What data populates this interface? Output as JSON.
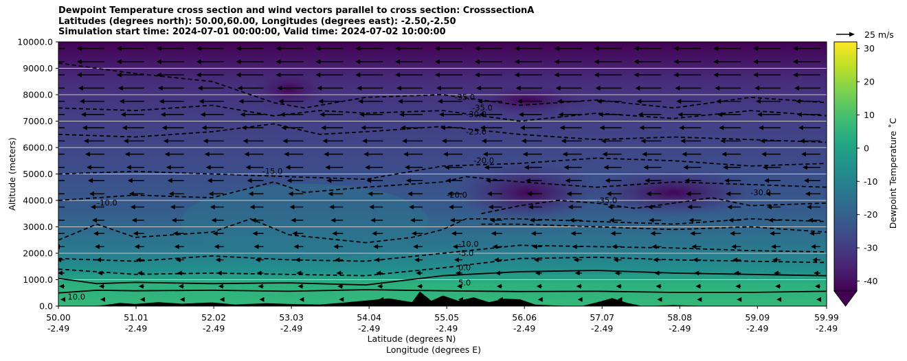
{
  "title": {
    "line1": "Dewpoint Temperature cross section and wind vectors parallel to cross section: CrosssectionA",
    "line2": "Latitudes (degrees north): 50.00,60.00, Longitudes (degrees east): -2.50,-2.50",
    "line3": "Simulation start time: 2024-07-01 00:00:00, Valid time: 2024-07-02 10:00:00"
  },
  "quiver_key_label": "25 m/s",
  "colorbar_label": "Dewpoint Temperature ˚C",
  "colors": {
    "colormap": "viridis",
    "terrain": "#000000",
    "gridlines": "#c8c8c8",
    "arrows": "#000000"
  },
  "chart_data": {
    "type": "heatmap",
    "subtype": "filled contour cross section with wind vectors",
    "xlabel": "Latitude (degrees N)",
    "xlabel2": "Longitude (degrees E)",
    "ylabel": "Altitude (meters)",
    "xlim": [
      50.0,
      59.99
    ],
    "ylim": [
      0,
      10000
    ],
    "grid": "horizontal",
    "x_ticks": [
      {
        "lat": "50.00",
        "lon": "-2.49"
      },
      {
        "lat": "51.01",
        "lon": "-2.49"
      },
      {
        "lat": "52.02",
        "lon": "-2.49"
      },
      {
        "lat": "53.03",
        "lon": "-2.49"
      },
      {
        "lat": "54.04",
        "lon": "-2.49"
      },
      {
        "lat": "55.05",
        "lon": "-2.49"
      },
      {
        "lat": "56.06",
        "lon": "-2.49"
      },
      {
        "lat": "57.07",
        "lon": "-2.49"
      },
      {
        "lat": "58.08",
        "lon": "-2.49"
      },
      {
        "lat": "59.09",
        "lon": "-2.49"
      },
      {
        "lat": "59.99",
        "lon": "-2.49"
      }
    ],
    "y_ticks": [
      "0.0",
      "1000.0",
      "2000.0",
      "3000.0",
      "4000.0",
      "5000.0",
      "6000.0",
      "7000.0",
      "8000.0",
      "9000.0",
      "10000.0"
    ],
    "colorbar_ticks": [
      30,
      20,
      10,
      0,
      -10,
      -20,
      -30,
      -40
    ],
    "colorbar_range": [
      -43,
      32
    ],
    "colorbar_extend": "min",
    "contour_labels": [
      {
        "text": "10.0",
        "lat": 50.12,
        "alt": 250
      },
      {
        "text": "5.0",
        "lat": 55.2,
        "alt": 780
      },
      {
        "text": "0.0",
        "lat": 55.2,
        "alt": 1350
      },
      {
        "text": "-5.0",
        "lat": 55.2,
        "alt": 1900
      },
      {
        "text": "-10.0",
        "lat": 55.2,
        "alt": 2250
      },
      {
        "text": "-10.0",
        "lat": 50.5,
        "alt": 3800
      },
      {
        "text": "-15.0",
        "lat": 52.65,
        "alt": 5000
      },
      {
        "text": "-20.0",
        "lat": 55.05,
        "alt": 4100
      },
      {
        "text": "-25.0",
        "lat": 55.3,
        "alt": 6500
      },
      {
        "text": "-30.0",
        "lat": 55.3,
        "alt": 7150
      },
      {
        "text": "-35.0",
        "lat": 55.38,
        "alt": 7400
      },
      {
        "text": "-35.0",
        "lat": 55.15,
        "alt": 7800
      },
      {
        "text": "-20.0",
        "lat": 55.4,
        "alt": 5400
      },
      {
        "text": "-35.0",
        "lat": 57.0,
        "alt": 3900
      },
      {
        "text": "-30.0",
        "lat": 59.0,
        "alt": 4200
      }
    ],
    "wind_direction": "mostly northerly flow (arrows pointing toward decreasing latitude), strongest aloft",
    "quiver_reference": "25 m/s"
  }
}
